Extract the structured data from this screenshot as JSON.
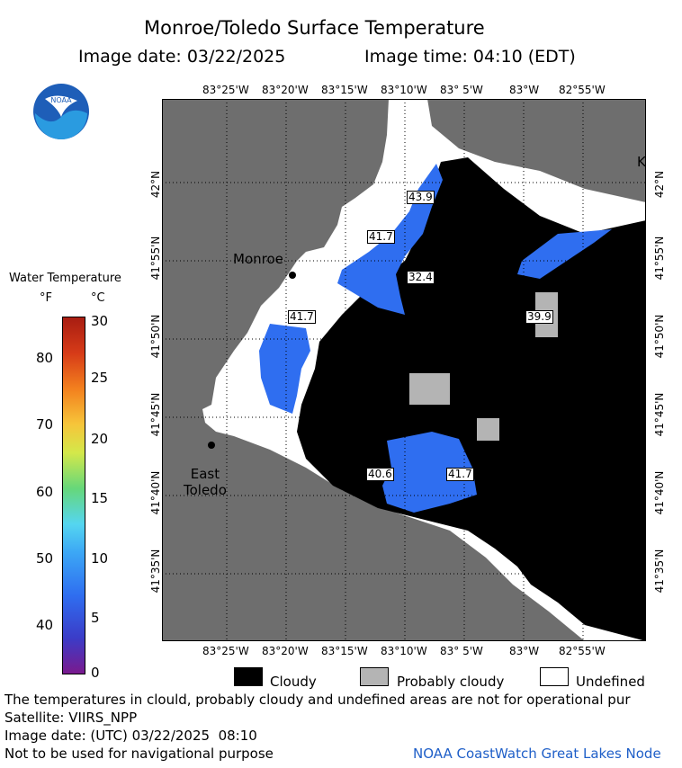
{
  "header": {
    "title": "Monroe/Toledo Surface Temperature",
    "image_date": "Image date: 03/22/2025",
    "image_time": "Image time: 04:10 (EDT)"
  },
  "logo": {
    "text": "NOAA"
  },
  "lon_ticks_top": [
    "83°25'W",
    "83°20'W",
    "83°15'W",
    "83°10'W",
    "83° 5'W",
    "83°W",
    "82°55'W"
  ],
  "lon_ticks_bottom": [
    "83°25'W",
    "83°20'W",
    "83°15'W",
    "83°10'W",
    "83° 5'W",
    "83°W",
    "82°55'W"
  ],
  "lat_ticks_left": [
    "42°N",
    "41°55'N",
    "41°50'N",
    "41°45'N",
    "41°40'N",
    "41°35'N"
  ],
  "lat_ticks_right": [
    "42°N",
    "41°55'N",
    "41°50'N",
    "41°45'N",
    "41°40'N",
    "41°35'N"
  ],
  "map": {
    "cities": [
      {
        "name": "Monroe"
      },
      {
        "name": "East\nToledo"
      }
    ],
    "edge_label": "K",
    "isotherm_labels": [
      "43.9",
      "41.7",
      "32.4",
      "41.7",
      "39.9",
      "40.6",
      "41.7"
    ],
    "colors": {
      "land": "#6e6e6e",
      "cloud": "#000000",
      "undefined": "#ffffff",
      "probably_cloudy": "#b4b4b4",
      "water": "#2f6ef0"
    }
  },
  "legend": {
    "title": "Water Temperature",
    "unit_f": "°F",
    "unit_c": "°C",
    "f_labels": [
      "80",
      "70",
      "60",
      "50",
      "40"
    ],
    "c_labels": [
      "30",
      "25",
      "20",
      "15",
      "10",
      "5",
      "0"
    ]
  },
  "key": [
    {
      "label": "Cloudy",
      "color": "#000000"
    },
    {
      "label": "Probably cloudy",
      "color": "#b4b4b4"
    },
    {
      "label": "Undefined",
      "color": "#ffffff"
    }
  ],
  "footer": {
    "line1": "The temperatures in clould, probably cloudy and undefined areas are not for operational pur",
    "line2": "Satellite: VIIRS_NPP",
    "line3": "Image date: (UTC) 03/22/2025  08:10",
    "line4": "Not to be used for navigational purpose",
    "credit": "NOAA CoastWatch Great Lakes Node"
  }
}
